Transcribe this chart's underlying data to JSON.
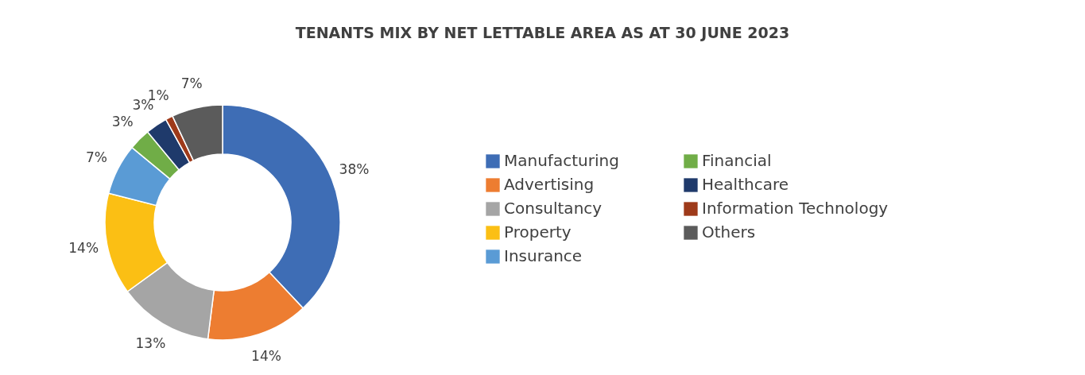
{
  "chart_data": {
    "type": "donut",
    "title": "TENANTS MIX BY NET LETTABLE AREA AS AT 30 JUNE 2023",
    "categories": [
      "Manufacturing",
      "Advertising",
      "Consultancy",
      "Property",
      "Insurance",
      "Financial",
      "Healthcare",
      "Information Technology",
      "Others"
    ],
    "values": [
      38,
      14,
      13,
      14,
      7,
      3,
      3,
      1,
      7
    ],
    "value_labels": [
      "38%",
      "14%",
      "13%",
      "14%",
      "7%",
      "3%",
      "3%",
      "1%",
      "7%"
    ],
    "colors": [
      "#3e6db5",
      "#ed7d31",
      "#a5a5a5",
      "#fbbf14",
      "#5a9bd5",
      "#70ad47",
      "#1f3a6b",
      "#9e3a1a",
      "#5b5b5b"
    ],
    "legend": "right"
  }
}
